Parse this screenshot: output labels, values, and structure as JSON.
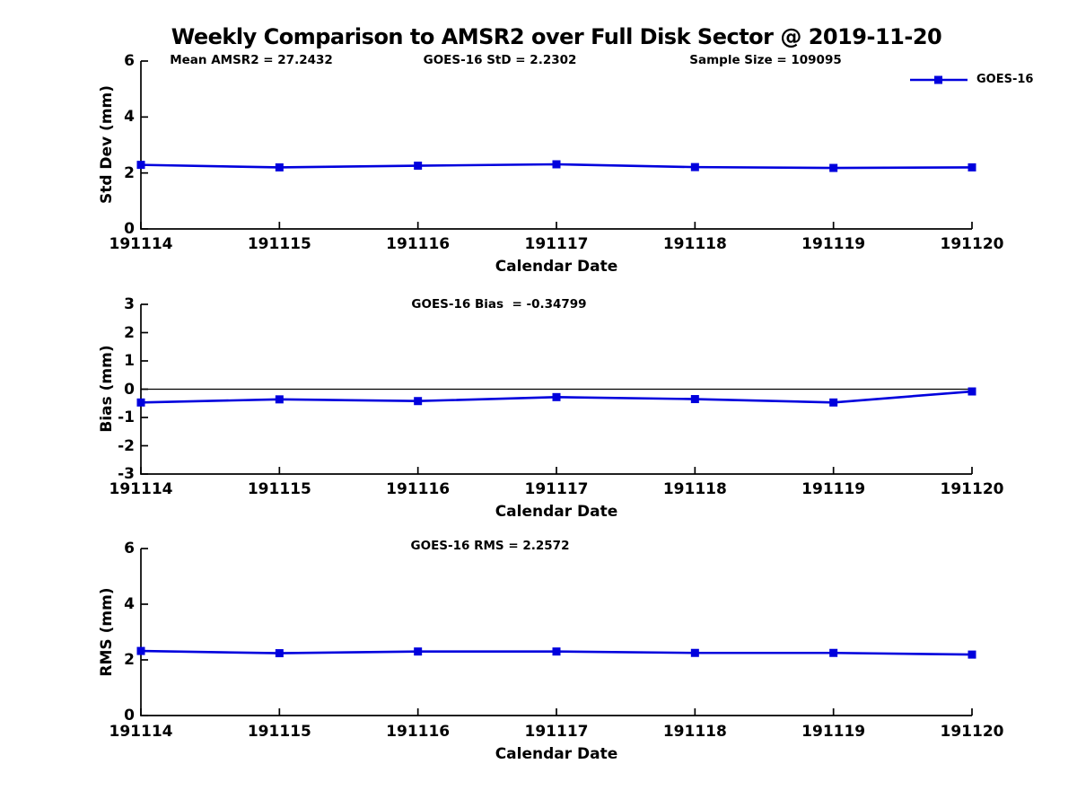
{
  "figure": {
    "title": "Weekly Comparison to AMSR2 over Full Disk Sector @ 2019-11-20",
    "background_color": "#ffffff",
    "line_color": "#0000dd",
    "axis_color": "#000000",
    "legend": {
      "label": "GOES-16",
      "marker": "square"
    }
  },
  "chart_data": [
    {
      "type": "line",
      "subplot": "std-dev",
      "annotations": [
        "Mean AMSR2 = 27.2432",
        "GOES-16 StD = 2.2302",
        "Sample Size = 109095"
      ],
      "ylabel": "Std Dev (mm)",
      "xlabel": "Calendar Date",
      "categories": [
        "191114",
        "191115",
        "191116",
        "191117",
        "191118",
        "191119",
        "191120"
      ],
      "yticks": [
        0,
        2,
        4,
        6
      ],
      "ylim": [
        0,
        6
      ],
      "grid": false,
      "legend_position": "top-right-outside",
      "series": [
        {
          "name": "GOES-16",
          "marker": "square",
          "values": [
            2.29,
            2.2,
            2.26,
            2.31,
            2.21,
            2.18,
            2.2
          ]
        }
      ]
    },
    {
      "type": "line",
      "subplot": "bias",
      "annotations": [
        "GOES-16 Bias  = -0.34799"
      ],
      "ylabel": "Bias (mm)",
      "xlabel": "Calendar Date",
      "categories": [
        "191114",
        "191115",
        "191116",
        "191117",
        "191118",
        "191119",
        "191120"
      ],
      "yticks": [
        -3,
        -2,
        -1,
        0,
        1,
        2,
        3
      ],
      "ylim": [
        -3,
        3
      ],
      "grid": false,
      "zero_line": true,
      "series": [
        {
          "name": "GOES-16",
          "marker": "square",
          "values": [
            -0.47,
            -0.36,
            -0.42,
            -0.28,
            -0.35,
            -0.47,
            -0.08
          ]
        }
      ]
    },
    {
      "type": "line",
      "subplot": "rms",
      "annotations": [
        "GOES-16 RMS = 2.2572"
      ],
      "ylabel": "RMS (mm)",
      "xlabel": "Calendar Date",
      "categories": [
        "191114",
        "191115",
        "191116",
        "191117",
        "191118",
        "191119",
        "191120"
      ],
      "yticks": [
        0,
        2,
        4,
        6
      ],
      "ylim": [
        0,
        6
      ],
      "grid": false,
      "series": [
        {
          "name": "GOES-16",
          "marker": "square",
          "values": [
            2.32,
            2.24,
            2.3,
            2.3,
            2.25,
            2.25,
            2.19
          ]
        }
      ]
    }
  ]
}
